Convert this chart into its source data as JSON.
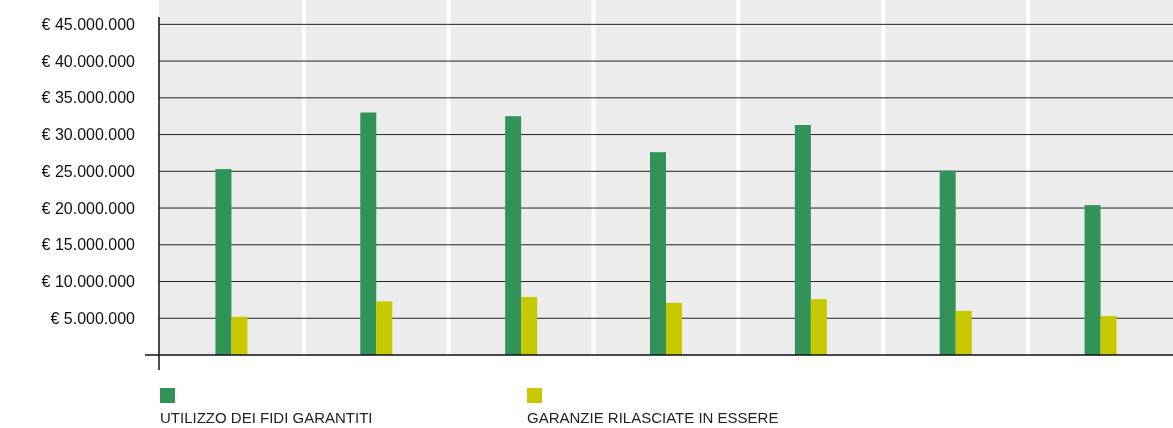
{
  "chart_data": {
    "type": "bar",
    "categories": [
      null,
      null,
      null,
      null,
      null,
      null,
      null
    ],
    "series": [
      {
        "name": "UTILIZZO DEI FIDI GARANTITI",
        "color": "#329359",
        "values": [
          25300000,
          33000000,
          32500000,
          27600000,
          31300000,
          25100000,
          20400000
        ]
      },
      {
        "name": "GARANZIE RILASCIATE IN ESSERE",
        "color": "#c8c800",
        "values": [
          5200000,
          7300000,
          7900000,
          7100000,
          7600000,
          6000000,
          5300000
        ]
      }
    ],
    "ylim": [
      0,
      46000000
    ],
    "yticks": [
      {
        "value": 5000000,
        "label": "€ 5.000.000"
      },
      {
        "value": 10000000,
        "label": "€ 10.000.000"
      },
      {
        "value": 15000000,
        "label": "€ 15.000.000"
      },
      {
        "value": 20000000,
        "label": "€ 20.000.000"
      },
      {
        "value": 25000000,
        "label": "€ 25.000.000"
      },
      {
        "value": 30000000,
        "label": "€ 30.000.000"
      },
      {
        "value": 35000000,
        "label": "€ 35.000.000"
      },
      {
        "value": 40000000,
        "label": "€ 40.000.000"
      },
      {
        "value": 45000000,
        "label": "€ 45.000.000"
      }
    ],
    "grid": "y",
    "legend": "bottom"
  }
}
